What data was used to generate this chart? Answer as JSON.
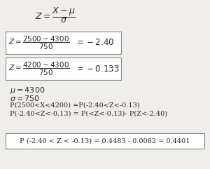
{
  "bg_color": "#f0eeeb",
  "text_color": "#2a2a2a",
  "box_edge_color": "#888888",
  "box_face_color": "#ffffff",
  "font_size_main": 9,
  "font_size_box": 7.5,
  "font_size_lines": 7,
  "font_size_box3": 7,
  "formula_main_text": "$Z = \\dfrac{X - \\mu}{\\sigma}$",
  "box1_fraction": "$Z= \\dfrac{2500-4300}{750}$",
  "box1_result": "$=-2.40$",
  "box2_fraction": "$Z= \\dfrac{4200-4300}{750}$",
  "box2_result": "$=-0.133$",
  "mu_line": "$\\mu = 4300$",
  "sigma_line": "$\\sigma = 750$",
  "prob_line1": "P(2500<X<4200) =P(-2.40<Z<-0.13)",
  "prob_line2": "P(-2.40<Z<-0.13) = P(<Z<-0.13)- P(Z<-2.40)",
  "result_text": "P (-2.40 < Z < -0.13) = 0.4483 - 0.0082 = 0.4401"
}
